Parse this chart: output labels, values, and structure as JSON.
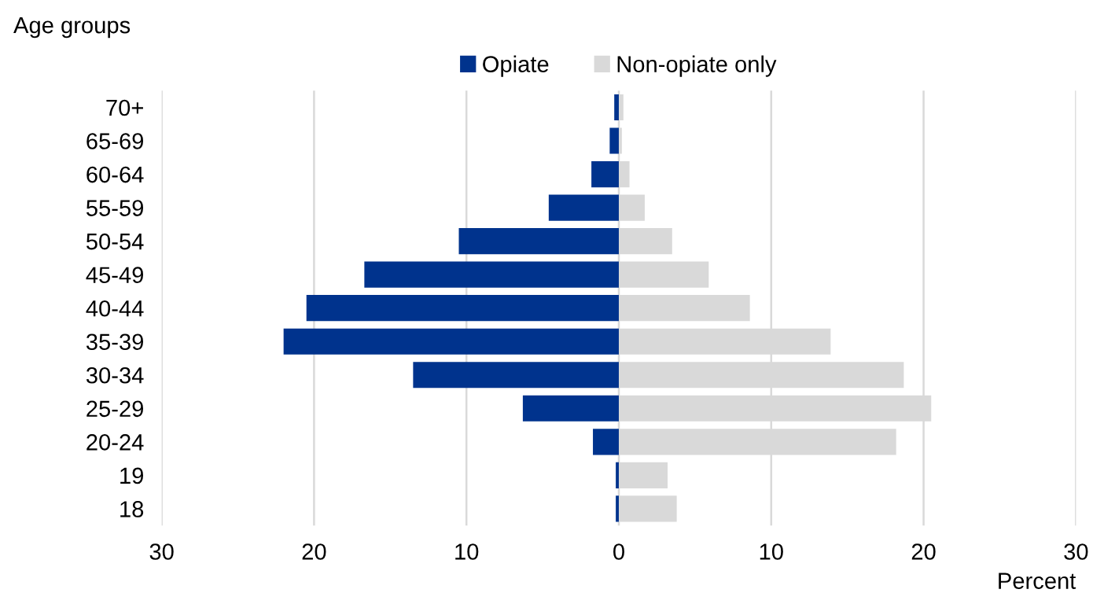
{
  "chart_data": {
    "type": "bar",
    "orientation": "horizontal",
    "ylabel": "Age groups",
    "xlabel": "Percent",
    "categories": [
      "70+",
      "65-69",
      "60-64",
      "55-59",
      "50-54",
      "45-49",
      "40-44",
      "35-39",
      "30-34",
      "25-29",
      "20-24",
      "19",
      "18"
    ],
    "series": [
      {
        "name": "Opiate",
        "color": "#00338d",
        "values": [
          -0.3,
          -0.6,
          -1.8,
          -4.6,
          -10.5,
          -16.7,
          -20.5,
          -22.0,
          -13.5,
          -6.3,
          -1.7,
          -0.2,
          -0.2
        ]
      },
      {
        "name": "Non-opiate only",
        "color": "#d9d9d9",
        "values": [
          0.3,
          0.2,
          0.7,
          1.7,
          3.5,
          5.9,
          8.6,
          13.9,
          18.7,
          20.5,
          18.2,
          3.2,
          3.8
        ]
      }
    ],
    "xlim": [
      -30,
      30
    ],
    "xticks": [
      {
        "value": -30,
        "label": "30"
      },
      {
        "value": -20,
        "label": "20"
      },
      {
        "value": -10,
        "label": "10"
      },
      0,
      10,
      20,
      30
    ],
    "grid": "x",
    "legend": "top",
    "stacked": true
  }
}
